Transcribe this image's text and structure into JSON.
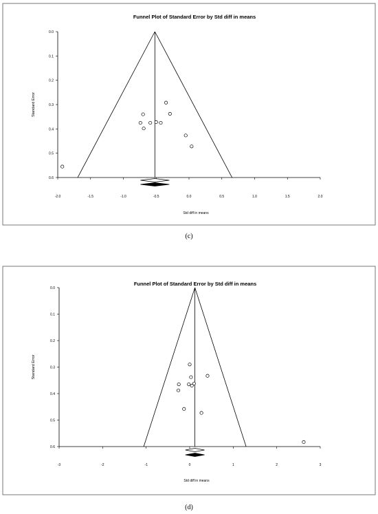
{
  "chart_data": [
    {
      "type": "scatter",
      "title": "Funnel Plot of Standard Error by Std diff in means",
      "xlabel": "Std diff in means",
      "ylabel": "Standard Error",
      "caption": "(c)",
      "xlim": [
        -2.0,
        2.0
      ],
      "ylim": [
        0.0,
        0.6
      ],
      "y_inverted": true,
      "xticks": [
        "-2.0",
        "-1.5",
        "-1.0",
        "-0.5",
        "0.0",
        "0.5",
        "1.0",
        "1.5",
        "2.0"
      ],
      "yticks": [
        "0.0",
        "0.1",
        "0.2",
        "0.3",
        "0.4",
        "0.5",
        "0.6"
      ],
      "pooled_effect": -0.52,
      "points": [
        {
          "x": -1.93,
          "y": 0.555
        },
        {
          "x": -0.7,
          "y": 0.34
        },
        {
          "x": -0.74,
          "y": 0.375
        },
        {
          "x": -0.69,
          "y": 0.398
        },
        {
          "x": -0.59,
          "y": 0.375
        },
        {
          "x": -0.5,
          "y": 0.372
        },
        {
          "x": -0.43,
          "y": 0.375
        },
        {
          "x": -0.35,
          "y": 0.292
        },
        {
          "x": -0.29,
          "y": 0.338
        },
        {
          "x": -0.05,
          "y": 0.427
        },
        {
          "x": 0.04,
          "y": 0.472
        }
      ],
      "diamonds": [
        {
          "center": -0.52,
          "half_width": 0.22,
          "row": 0
        },
        {
          "center": -0.52,
          "half_width": 0.22,
          "row": 1
        }
      ]
    },
    {
      "type": "scatter",
      "title": "Funnel Plot of Standard Error by Std diff in means",
      "xlabel": "Std diff in means",
      "ylabel": "Standard Error",
      "caption": "(d)",
      "xlim": [
        -3,
        3
      ],
      "ylim": [
        0.0,
        0.6
      ],
      "y_inverted": true,
      "xticks": [
        "-3",
        "-2",
        "-1",
        "0",
        "1",
        "2",
        "3"
      ],
      "yticks": [
        "0.0",
        "0.1",
        "0.2",
        "0.3",
        "0.4",
        "0.5",
        "0.6"
      ],
      "pooled_effect": 0.12,
      "points": [
        {
          "x": 0.0,
          "y": 0.29
        },
        {
          "x": 0.03,
          "y": 0.338
        },
        {
          "x": 0.41,
          "y": 0.333
        },
        {
          "x": -0.25,
          "y": 0.365
        },
        {
          "x": -0.02,
          "y": 0.365
        },
        {
          "x": 0.05,
          "y": 0.37
        },
        {
          "x": 0.1,
          "y": 0.362
        },
        {
          "x": -0.26,
          "y": 0.388
        },
        {
          "x": -0.13,
          "y": 0.458
        },
        {
          "x": 0.27,
          "y": 0.473
        },
        {
          "x": 2.62,
          "y": 0.583
        }
      ],
      "diamonds": [
        {
          "center": 0.12,
          "half_width": 0.22,
          "row": 0
        },
        {
          "center": 0.12,
          "half_width": 0.22,
          "row": 1
        }
      ]
    }
  ]
}
